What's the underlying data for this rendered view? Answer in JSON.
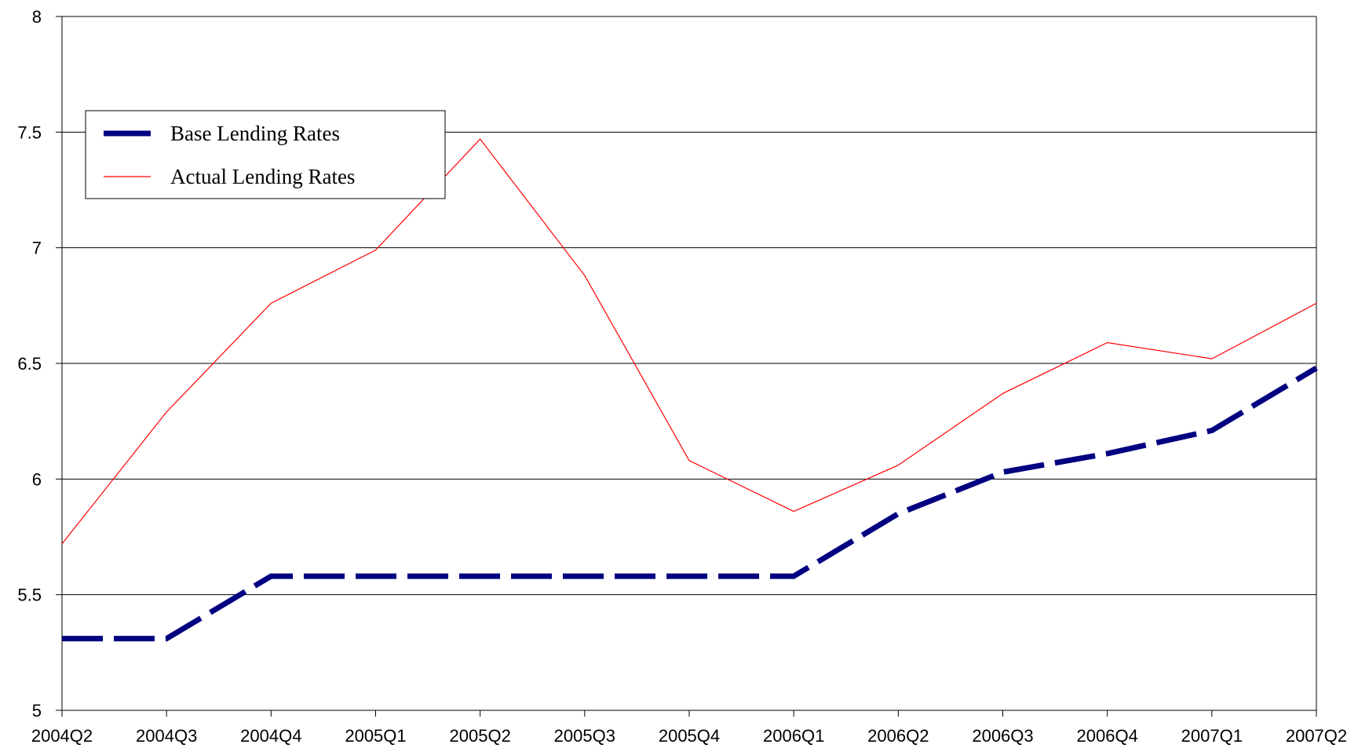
{
  "chart_data": {
    "type": "line",
    "categories": [
      "2004Q2",
      "2004Q3",
      "2004Q4",
      "2005Q1",
      "2005Q2",
      "2005Q3",
      "2005Q4",
      "2006Q1",
      "2006Q2",
      "2006Q3",
      "2006Q4",
      "2007Q1",
      "2007Q2"
    ],
    "series": [
      {
        "name": "Base Lending Rates",
        "color": "#000080",
        "values": [
          5.31,
          5.31,
          5.58,
          5.58,
          5.58,
          5.58,
          5.58,
          5.58,
          5.85,
          6.03,
          6.11,
          6.21,
          6.48
        ]
      },
      {
        "name": "Actual Lending Rates",
        "color": "#ff0000",
        "values": [
          5.72,
          6.29,
          6.76,
          6.99,
          7.47,
          6.88,
          6.08,
          5.86,
          6.06,
          6.37,
          6.59,
          6.52,
          6.76
        ]
      }
    ],
    "ylim": [
      5,
      8
    ],
    "yticks": [
      5,
      5.5,
      6,
      6.5,
      7,
      7.5,
      8
    ],
    "grid": true,
    "legend": "upper-left"
  }
}
